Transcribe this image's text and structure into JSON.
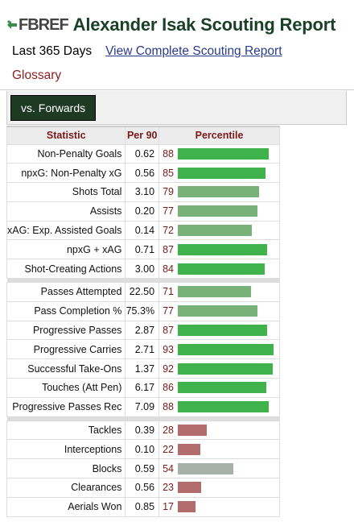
{
  "header": {
    "logo_text": "FBREF",
    "title": "Alexander Isak Scouting Report"
  },
  "subline": {
    "period": "Last 365 Days",
    "link": "View Complete Scouting Report"
  },
  "glossary": "Glossary",
  "filter": {
    "label": "vs. Forwards"
  },
  "table": {
    "headers": {
      "statistic": "Statistic",
      "per90": "Per 90",
      "percentile": "Percentile"
    },
    "colors": {
      "high": "#3fb24b",
      "mid": "#78b278",
      "neutral": "#a7b1a7",
      "low": "#b26c6c"
    },
    "groups": [
      [
        {
          "stat": "Non-Penalty Goals",
          "val": "0.62",
          "pct": "88",
          "pct_value": 88,
          "tone": "high"
        },
        {
          "stat": "npxG: Non-Penalty xG",
          "val": "0.56",
          "pct": "85",
          "pct_value": 85,
          "tone": "high"
        },
        {
          "stat": "Shots Total",
          "val": "3.10",
          "pct": "79",
          "pct_value": 79,
          "tone": "mid"
        },
        {
          "stat": "Assists",
          "val": "0.20",
          "pct": "77",
          "pct_value": 77,
          "tone": "mid"
        },
        {
          "stat": "xAG: Exp. Assisted Goals",
          "val": "0.14",
          "pct": "72",
          "pct_value": 72,
          "tone": "mid"
        },
        {
          "stat": "npxG + xAG",
          "val": "0.71",
          "pct": "87",
          "pct_value": 87,
          "tone": "high"
        },
        {
          "stat": "Shot-Creating Actions",
          "val": "3.00",
          "pct": "84",
          "pct_value": 84,
          "tone": "high"
        }
      ],
      [
        {
          "stat": "Passes Attempted",
          "val": "22.50",
          "pct": "71",
          "pct_value": 71,
          "tone": "mid"
        },
        {
          "stat": "Pass Completion %",
          "val": "75.3%",
          "pct": "77",
          "pct_value": 77,
          "tone": "mid"
        },
        {
          "stat": "Progressive Passes",
          "val": "2.87",
          "pct": "87",
          "pct_value": 87,
          "tone": "high"
        },
        {
          "stat": "Progressive Carries",
          "val": "2.71",
          "pct": "93",
          "pct_value": 93,
          "tone": "high"
        },
        {
          "stat": "Successful Take-Ons",
          "val": "1.37",
          "pct": "92",
          "pct_value": 92,
          "tone": "high"
        },
        {
          "stat": "Touches (Att Pen)",
          "val": "6.17",
          "pct": "86",
          "pct_value": 86,
          "tone": "high"
        },
        {
          "stat": "Progressive Passes Rec",
          "val": "7.09",
          "pct": "88",
          "pct_value": 88,
          "tone": "high"
        }
      ],
      [
        {
          "stat": "Tackles",
          "val": "0.39",
          "pct": "28",
          "pct_value": 28,
          "tone": "low"
        },
        {
          "stat": "Interceptions",
          "val": "0.10",
          "pct": "22",
          "pct_value": 22,
          "tone": "low"
        },
        {
          "stat": "Blocks",
          "val": "0.59",
          "pct": "54",
          "pct_value": 54,
          "tone": "neutral"
        },
        {
          "stat": "Clearances",
          "val": "0.56",
          "pct": "23",
          "pct_value": 23,
          "tone": "low"
        },
        {
          "stat": "Aerials Won",
          "val": "0.85",
          "pct": "17",
          "pct_value": 17,
          "tone": "low"
        }
      ]
    ]
  }
}
